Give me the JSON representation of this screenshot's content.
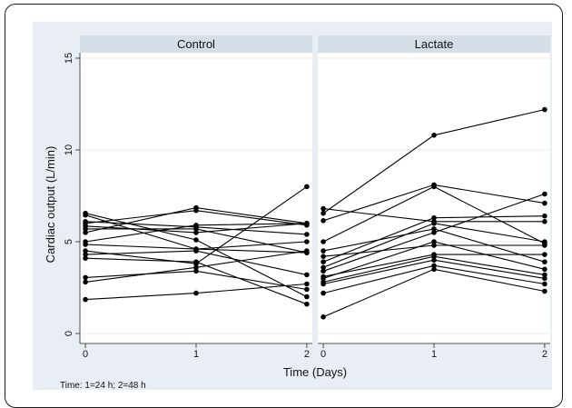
{
  "chart_data": {
    "type": "line",
    "xlabel": "Time (Days)",
    "ylabel": "Cardiac output (L/min)",
    "x": [
      0,
      1,
      2
    ],
    "x_ticks": [
      "0",
      "1",
      "2"
    ],
    "y_ticks": [
      "0",
      "5",
      "10",
      "15"
    ],
    "ylim": [
      0,
      15
    ],
    "xlim": [
      -0.05,
      2.05
    ],
    "grid": true,
    "note": "Time: 1=24 h; 2=48 h",
    "colors": {
      "background": "#e8eef3",
      "plot": "#ffffff",
      "strip": "#d5dfe8",
      "line": "#000000"
    },
    "panels": [
      {
        "title": "Control",
        "series": [
          {
            "values": [
              1.85,
              2.2,
              2.7
            ]
          },
          {
            "values": [
              2.8,
              3.6,
              4.5
            ]
          },
          {
            "values": [
              3.05,
              3.4,
              2.4
            ]
          },
          {
            "values": [
              4.1,
              3.9,
              1.6
            ]
          },
          {
            "values": [
              4.3,
              4.5,
              3.2
            ]
          },
          {
            "values": [
              4.5,
              3.8,
              8.0
            ]
          },
          {
            "values": [
              4.85,
              4.6,
              5.0
            ]
          },
          {
            "values": [
              5.0,
              5.9,
              6.0
            ]
          },
          {
            "values": [
              5.5,
              6.85,
              6.0
            ]
          },
          {
            "values": [
              5.7,
              5.7,
              4.4
            ]
          },
          {
            "values": [
              5.85,
              5.5,
              6.0
            ]
          },
          {
            "values": [
              6.0,
              6.7,
              5.9
            ]
          },
          {
            "values": [
              6.1,
              5.8,
              5.4
            ]
          },
          {
            "values": [
              6.45,
              4.6,
              4.4
            ]
          },
          {
            "values": [
              6.55,
              5.1,
              2.0
            ]
          }
        ]
      },
      {
        "title": "Lactate",
        "series": [
          {
            "values": [
              0.9,
              3.5,
              2.3
            ]
          },
          {
            "values": [
              2.2,
              3.7,
              2.7
            ]
          },
          {
            "values": [
              2.7,
              4.0,
              3.0
            ]
          },
          {
            "values": [
              2.8,
              4.2,
              3.2
            ]
          },
          {
            "values": [
              3.0,
              5.0,
              3.5
            ]
          },
          {
            "values": [
              3.1,
              4.3,
              4.3
            ]
          },
          {
            "values": [
              3.4,
              5.5,
              7.6
            ]
          },
          {
            "values": [
              3.6,
              6.0,
              5.0
            ]
          },
          {
            "values": [
              3.9,
              6.3,
              6.4
            ]
          },
          {
            "values": [
              4.2,
              4.8,
              4.8
            ]
          },
          {
            "values": [
              4.5,
              5.7,
              3.9
            ]
          },
          {
            "values": [
              5.0,
              8.0,
              4.9
            ]
          },
          {
            "values": [
              6.15,
              8.1,
              7.1
            ]
          },
          {
            "values": [
              6.55,
              10.8,
              12.2
            ]
          },
          {
            "values": [
              6.8,
              6.1,
              6.1
            ]
          }
        ]
      }
    ]
  }
}
